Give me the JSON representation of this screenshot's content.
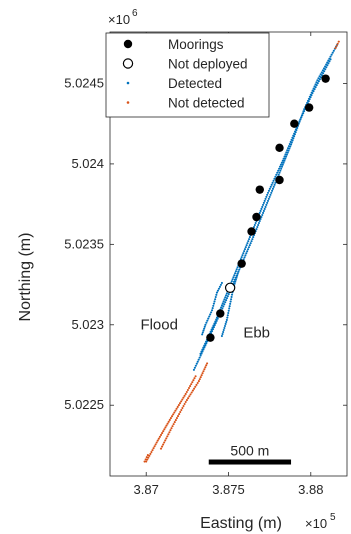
{
  "chart_data": {
    "type": "scatter",
    "xlabel": "Easting (m)",
    "ylabel": "Northing (m)",
    "x_multiplier": "×10",
    "x_exponent": "5",
    "y_multiplier": "×10",
    "y_exponent": "6",
    "xlim": [
      386780,
      388220
    ],
    "ylim": [
      5022060,
      5024820
    ],
    "x_ticks": [
      {
        "value": 387000,
        "label": "3.87"
      },
      {
        "value": 387500,
        "label": "3.875"
      },
      {
        "value": 388000,
        "label": "3.88"
      }
    ],
    "y_ticks": [
      {
        "value": 5022500,
        "label": "5.0225"
      },
      {
        "value": 5023000,
        "label": "5.023"
      },
      {
        "value": 5023500,
        "label": "5.0235"
      },
      {
        "value": 5024000,
        "label": "5.024"
      },
      {
        "value": 5024500,
        "label": "5.0245"
      }
    ],
    "grid": false,
    "legend_position": "top-left",
    "legend": [
      {
        "label": "Moorings",
        "marker": "filled-circle",
        "color": "#000000"
      },
      {
        "label": "Not deployed",
        "marker": "open-circle",
        "color": "#000000"
      },
      {
        "label": "Detected",
        "marker": "dot",
        "color": "#0072BD"
      },
      {
        "label": "Not detected",
        "marker": "dot",
        "color": "#D95319"
      }
    ],
    "series": [
      {
        "name": "Moorings",
        "color": "#000000",
        "points": [
          [
            388090,
            5024530
          ],
          [
            387990,
            5024350
          ],
          [
            387900,
            5024250
          ],
          [
            387810,
            5024100
          ],
          [
            387810,
            5023900
          ],
          [
            387690,
            5023840
          ],
          [
            387670,
            5023670
          ],
          [
            387640,
            5023580
          ],
          [
            387580,
            5023380
          ],
          [
            387450,
            5023070
          ],
          [
            387390,
            5022920
          ]
        ]
      },
      {
        "name": "Not deployed",
        "color": "#000000",
        "points": [
          [
            387510,
            5023230
          ]
        ]
      },
      {
        "name": "Detected",
        "color": "#0072BD",
        "track_paths": [
          [
            [
              387290,
              5022720
            ],
            [
              387400,
              5022960
            ],
            [
              387480,
              5023140
            ],
            [
              387560,
              5023330
            ],
            [
              387640,
              5023520
            ],
            [
              387720,
              5023720
            ],
            [
              387800,
              5023920
            ],
            [
              387880,
              5024120
            ],
            [
              387960,
              5024340
            ],
            [
              388040,
              5024520
            ],
            [
              388160,
              5024740
            ]
          ],
          [
            [
              387330,
              5022820
            ],
            [
              387420,
              5023020
            ],
            [
              387500,
              5023220
            ],
            [
              387580,
              5023420
            ],
            [
              387660,
              5023620
            ],
            [
              387740,
              5023820
            ],
            [
              387830,
              5024020
            ],
            [
              387920,
              5024240
            ],
            [
              388010,
              5024440
            ],
            [
              388120,
              5024650
            ]
          ],
          [
            [
              387340,
              5022940
            ],
            [
              387360,
              5023000
            ],
            [
              387400,
              5023090
            ],
            [
              387430,
              5023200
            ],
            [
              387460,
              5023260
            ]
          ],
          [
            [
              387460,
              5022930
            ],
            [
              387490,
              5023030
            ],
            [
              387510,
              5023130
            ],
            [
              387530,
              5023230
            ],
            [
              387560,
              5023330
            ]
          ]
        ]
      },
      {
        "name": "Not detected",
        "color": "#D95319",
        "track_paths": [
          [
            [
              387000,
              5022150
            ],
            [
              387070,
              5022280
            ],
            [
              387150,
              5022420
            ],
            [
              387240,
              5022570
            ],
            [
              387300,
              5022680
            ]
          ],
          [
            [
              387090,
              5022230
            ],
            [
              387160,
              5022370
            ],
            [
              387240,
              5022520
            ],
            [
              387320,
              5022650
            ],
            [
              387370,
              5022760
            ]
          ],
          [
            [
              386990,
              5022150
            ],
            [
              387010,
              5022190
            ]
          ],
          [
            [
              388150,
              5024720
            ],
            [
              388170,
              5024760
            ]
          ]
        ]
      }
    ],
    "annotations": [
      {
        "text": "Flood",
        "x": 386965,
        "y": 5022970
      },
      {
        "text": "Ebb",
        "x": 387590,
        "y": 5022920
      }
    ],
    "scale_bar": {
      "label": "500 m",
      "length_m": 500,
      "x_start": 387380,
      "y": 5022150
    }
  }
}
